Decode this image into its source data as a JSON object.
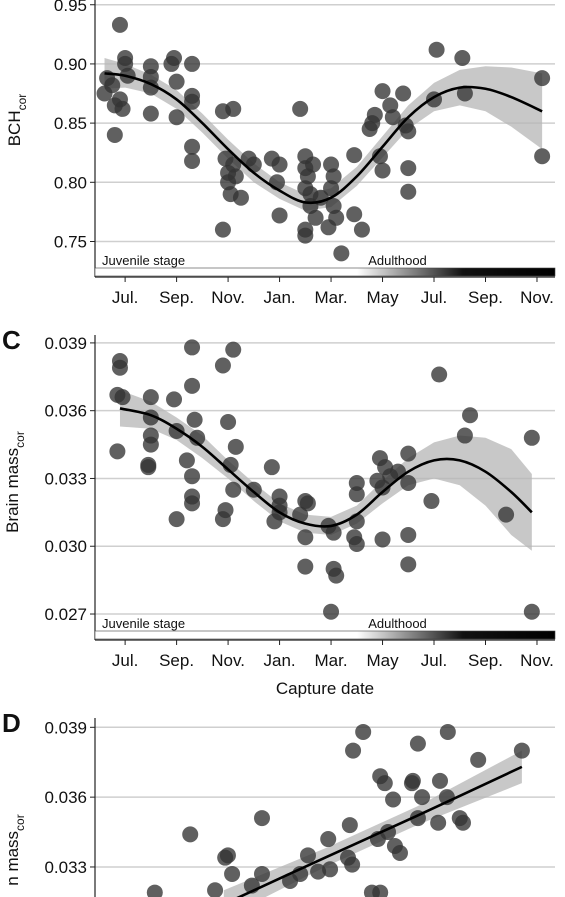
{
  "chart_data": [
    {
      "type": "scatter",
      "ylabel": "BCH",
      "ylabel_sub": "cor",
      "annotations": [
        "Juvenile stage",
        "Adulthood"
      ],
      "xlim": [
        -1.17,
        16.7
      ],
      "ylim": [
        0.72,
        0.954
      ],
      "xticks": [
        {
          "value": 0,
          "label": "Jul."
        },
        {
          "value": 2,
          "label": "Sep."
        },
        {
          "value": 4,
          "label": "Nov."
        },
        {
          "value": 6,
          "label": "Jan."
        },
        {
          "value": 8,
          "label": "Mar."
        },
        {
          "value": 10,
          "label": "May"
        },
        {
          "value": 12,
          "label": "Jul."
        },
        {
          "value": 14,
          "label": "Sep."
        },
        {
          "value": 16,
          "label": "Nov."
        }
      ],
      "yticks": [
        0.75,
        {
          "value": 0.8,
          "label": "0.80"
        },
        0.85,
        {
          "value": 0.9,
          "label": "0.90"
        },
        0.95
      ],
      "grid": true,
      "color": "#333333",
      "line_color": "#000000",
      "band_color": "#b5b5b5",
      "x": [
        -0.8,
        -0.7,
        -0.5,
        -0.4,
        -0.4,
        -0.2,
        -0.2,
        0,
        0,
        0.1,
        -0.1,
        1,
        1,
        1,
        1,
        1.8,
        1.9,
        2,
        2,
        2.6,
        2.6,
        2.6,
        2.6,
        2.6,
        3.8,
        4.2,
        3.9,
        4,
        4,
        4.1,
        4.3,
        4.5,
        4.2,
        3.8,
        5,
        4.8,
        5.7,
        5.9,
        6,
        6,
        6.8,
        7,
        7,
        7,
        7.1,
        7.2,
        7.3,
        7.2,
        7,
        7,
        7.4,
        7.6,
        7.9,
        8,
        8.1,
        8.1,
        8.2,
        8.4,
        8,
        8.9,
        8.9,
        9.2,
        9.7,
        9.5,
        9.6,
        9.9,
        10,
        10,
        10.3,
        10.4,
        10.8,
        11,
        11,
        11,
        10.9,
        12,
        12.1,
        13.1,
        13.2,
        16.2,
        16.2
      ],
      "values": [
        0.875,
        0.888,
        0.882,
        0.865,
        0.84,
        0.933,
        0.87,
        0.905,
        0.9,
        0.89,
        0.862,
        0.898,
        0.889,
        0.88,
        0.858,
        0.9,
        0.905,
        0.885,
        0.855,
        0.9,
        0.873,
        0.868,
        0.83,
        0.818,
        0.86,
        0.862,
        0.82,
        0.808,
        0.8,
        0.79,
        0.805,
        0.787,
        0.815,
        0.76,
        0.815,
        0.82,
        0.82,
        0.8,
        0.815,
        0.772,
        0.862,
        0.822,
        0.812,
        0.795,
        0.805,
        0.79,
        0.815,
        0.78,
        0.76,
        0.755,
        0.77,
        0.787,
        0.762,
        0.815,
        0.805,
        0.78,
        0.77,
        0.74,
        0.795,
        0.823,
        0.773,
        0.76,
        0.857,
        0.845,
        0.85,
        0.822,
        0.81,
        0.877,
        0.865,
        0.855,
        0.875,
        0.843,
        0.812,
        0.792,
        0.848,
        0.87,
        0.912,
        0.905,
        0.875,
        0.888,
        0.822
      ],
      "fit": {
        "x": [
          -0.8,
          0,
          1,
          2,
          3,
          4,
          5,
          6,
          7,
          8,
          9,
          10,
          11,
          12,
          13,
          14,
          15,
          16.2
        ],
        "values": [
          0.892,
          0.89,
          0.883,
          0.87,
          0.85,
          0.828,
          0.808,
          0.793,
          0.783,
          0.787,
          0.805,
          0.83,
          0.855,
          0.872,
          0.88,
          0.879,
          0.872,
          0.86
        ],
        "lower": [
          0.879,
          0.88,
          0.875,
          0.862,
          0.842,
          0.82,
          0.8,
          0.786,
          0.776,
          0.779,
          0.797,
          0.821,
          0.845,
          0.86,
          0.865,
          0.86,
          0.847,
          0.828
        ],
        "upper": [
          0.905,
          0.9,
          0.891,
          0.878,
          0.858,
          0.836,
          0.816,
          0.8,
          0.79,
          0.795,
          0.813,
          0.839,
          0.865,
          0.884,
          0.895,
          0.898,
          0.897,
          0.892
        ]
      }
    },
    {
      "type": "scatter",
      "label": "C",
      "ylabel": "Brain mass",
      "ylabel_sub": "cor",
      "xlabel": "Capture date",
      "annotations": [
        "Juvenile stage",
        "Adulthood"
      ],
      "xlim": [
        -1.17,
        16.7
      ],
      "ylim": [
        0.02585,
        0.03935
      ],
      "xticks": [
        {
          "value": 0,
          "label": "Jul."
        },
        {
          "value": 2,
          "label": "Sep."
        },
        {
          "value": 4,
          "label": "Nov."
        },
        {
          "value": 6,
          "label": "Jan."
        },
        {
          "value": 8,
          "label": "Mar."
        },
        {
          "value": 10,
          "label": "May"
        },
        {
          "value": 12,
          "label": "Jul."
        },
        {
          "value": 14,
          "label": "Sep."
        },
        {
          "value": 16,
          "label": "Nov."
        }
      ],
      "yticks": [
        0.027,
        {
          "value": 0.03,
          "label": "0.030"
        },
        0.033,
        0.036,
        0.039
      ],
      "grid": true,
      "color": "#333333",
      "line_color": "#000000",
      "band_color": "#b5b5b5",
      "x": [
        -0.2,
        -0.2,
        -0.3,
        -0.1,
        -0.3,
        1,
        1,
        1,
        1,
        0.9,
        0.9,
        1.9,
        2,
        2.6,
        2.6,
        2.7,
        2.8,
        2.4,
        2.6,
        2.6,
        2.6,
        2,
        3.8,
        4.2,
        4,
        4.3,
        4.1,
        4.2,
        3.9,
        3.8,
        5,
        5.7,
        6,
        5.8,
        6,
        6,
        6.8,
        7,
        7.1,
        7,
        7,
        7.9,
        8.1,
        8.1,
        8.2,
        8,
        9,
        9,
        9,
        8.9,
        9,
        9.9,
        9.8,
        10.1,
        10,
        10,
        10.3,
        10.6,
        11,
        11,
        11,
        11,
        11.9,
        12.2,
        13.2,
        13.4,
        14.8,
        15.8,
        15.8
      ],
      "values": [
        0.0382,
        0.0379,
        0.0367,
        0.0366,
        0.0342,
        0.0366,
        0.0357,
        0.0349,
        0.0345,
        0.0336,
        0.0335,
        0.0365,
        0.0351,
        0.0388,
        0.0371,
        0.0356,
        0.0348,
        0.0338,
        0.0331,
        0.0322,
        0.0319,
        0.0312,
        0.038,
        0.0387,
        0.0355,
        0.0344,
        0.0336,
        0.0325,
        0.0316,
        0.0312,
        0.0325,
        0.0335,
        0.0322,
        0.0311,
        0.0318,
        0.0315,
        0.0314,
        0.032,
        0.0319,
        0.0304,
        0.0291,
        0.0309,
        0.0306,
        0.029,
        0.0287,
        0.0271,
        0.0328,
        0.0323,
        0.0311,
        0.0304,
        0.0301,
        0.0339,
        0.0329,
        0.0335,
        0.0326,
        0.0303,
        0.0331,
        0.0333,
        0.0341,
        0.0328,
        0.0305,
        0.0292,
        0.032,
        0.0376,
        0.0349,
        0.0358,
        0.0314,
        0.0348,
        0.0271
      ],
      "fit": {
        "x": [
          -0.2,
          1,
          2,
          3,
          4,
          5,
          6,
          7,
          8,
          9,
          10,
          11,
          12,
          13,
          14,
          15,
          15.8
        ],
        "values": [
          0.0361,
          0.0358,
          0.0352,
          0.0344,
          0.0334,
          0.0324,
          0.0315,
          0.031,
          0.0309,
          0.0314,
          0.0324,
          0.0333,
          0.0338,
          0.0338,
          0.0333,
          0.0324,
          0.0315
        ],
        "lower": [
          0.0353,
          0.0352,
          0.0347,
          0.0339,
          0.033,
          0.032,
          0.0311,
          0.0306,
          0.0305,
          0.031,
          0.0319,
          0.0327,
          0.033,
          0.0327,
          0.0318,
          0.0305,
          0.0298
        ],
        "upper": [
          0.0369,
          0.0364,
          0.0357,
          0.0349,
          0.0338,
          0.0328,
          0.0319,
          0.0314,
          0.0313,
          0.0318,
          0.0329,
          0.0339,
          0.0346,
          0.0349,
          0.0348,
          0.0343,
          0.0332
        ]
      }
    },
    {
      "type": "scatter",
      "label": "D",
      "ylabel": "n mass",
      "ylabel_sub": "cor",
      "xlim": [
        0,
        100
      ],
      "ylim": [
        0.03171,
        0.0394
      ],
      "yticks": [
        0.033,
        0.036,
        0.039
      ],
      "grid": true,
      "color": "#333333",
      "line_color": "#000000",
      "band_color": "#b5b5b5",
      "x": [
        92.8,
        83.3,
        76.7,
        70.2,
        58.3,
        56.1,
        62,
        63,
        69.1,
        68.9,
        75,
        71.1,
        76.5,
        64.8,
        70.2,
        79.3,
        74.6,
        63.7,
        65.2,
        66.3,
        61.5,
        80,
        55.4,
        50.7,
        55,
        55.9,
        51.1,
        48.5,
        46.3,
        44.6,
        42.4,
        36.3,
        28.3,
        36.3,
        20.7,
        28.9,
        29.8,
        34.1,
        26.1,
        13,
        62,
        60.2
      ],
      "values": [
        0.038,
        0.0376,
        0.0388,
        0.0383,
        0.0388,
        0.038,
        0.0369,
        0.0366,
        0.0367,
        0.0366,
        0.0367,
        0.036,
        0.036,
        0.0359,
        0.0351,
        0.0351,
        0.0349,
        0.0345,
        0.0339,
        0.0336,
        0.0342,
        0.0349,
        0.0348,
        0.0342,
        0.0334,
        0.0331,
        0.0329,
        0.0328,
        0.0335,
        0.0327,
        0.0324,
        0.0327,
        0.0334,
        0.0351,
        0.0344,
        0.0335,
        0.0327,
        0.0322,
        0.032,
        0.0319,
        0.0319,
        0.0319
      ],
      "fit": {
        "x": [
          28,
          50,
          70,
          92.8
        ],
        "values": [
          0.0314,
          0.0334,
          0.0352,
          0.0373
        ],
        "lower": [
          0.0308,
          0.033,
          0.0348,
          0.0366
        ],
        "upper": [
          0.032,
          0.0338,
          0.0356,
          0.038
        ]
      }
    }
  ]
}
